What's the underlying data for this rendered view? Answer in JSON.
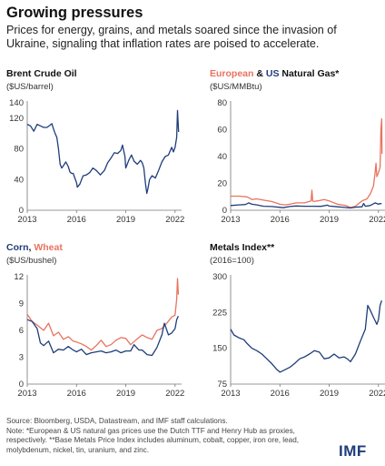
{
  "title": "Growing pressures",
  "subtitle": "Prices for energy, grains, and metals soared since the invasion of Ukraine, signaling that inflation rates are poised to accelerate.",
  "footer": {
    "source": "Source: Bloomberg, USDA, Datastream, and IMF staff calculations.",
    "note": "Note: *European & US natural gas prices use the Dutch TTF and Henry Hub as proxies, respectively. **Base Metals Price Index includes aluminum, cobalt, copper, iron ore, lead, molybdenum, nickel, tin, uranium, and zinc."
  },
  "logo": "IMF",
  "colors": {
    "blue": "#1f3d7a",
    "red": "#e8735f",
    "axis": "#777777"
  },
  "chart_data": [
    {
      "id": "oil",
      "type": "line",
      "title_parts": [
        {
          "text": "Brent Crude Oil",
          "color": "default"
        }
      ],
      "unit": "($US/barrel)",
      "xlim": [
        2013,
        2022.4
      ],
      "ylim": [
        0,
        140
      ],
      "xticks": [
        2013,
        2016,
        2019,
        2022
      ],
      "yticks": [
        0,
        40,
        80,
        120,
        140
      ],
      "series": [
        {
          "color": "blue",
          "x": [
            2013,
            2013.2,
            2013.4,
            2013.6,
            2013.8,
            2014.0,
            2014.2,
            2014.4,
            2014.5,
            2014.6,
            2014.7,
            2014.8,
            2014.9,
            2015.0,
            2015.1,
            2015.2,
            2015.35,
            2015.5,
            2015.6,
            2015.7,
            2015.8,
            2015.9,
            2016.0,
            2016.05,
            2016.2,
            2016.4,
            2016.6,
            2016.8,
            2017.0,
            2017.2,
            2017.45,
            2017.7,
            2017.9,
            2018.1,
            2018.3,
            2018.5,
            2018.7,
            2018.8,
            2018.95,
            2019.0,
            2019.2,
            2019.35,
            2019.5,
            2019.7,
            2019.9,
            2020.0,
            2020.1,
            2020.2,
            2020.28,
            2020.35,
            2020.45,
            2020.6,
            2020.8,
            2021.0,
            2021.2,
            2021.4,
            2021.6,
            2021.8,
            2021.9,
            2022.0,
            2022.1,
            2022.15,
            2022.18,
            2022.22
          ],
          "y": [
            112,
            110,
            103,
            112,
            110,
            108,
            108,
            111,
            113,
            106,
            100,
            95,
            80,
            60,
            55,
            58,
            63,
            57,
            50,
            48,
            48,
            42,
            36,
            30,
            34,
            45,
            46,
            49,
            55,
            52,
            46,
            52,
            62,
            68,
            75,
            74,
            78,
            85,
            70,
            55,
            66,
            72,
            64,
            60,
            65,
            62,
            55,
            35,
            22,
            28,
            40,
            45,
            42,
            52,
            63,
            70,
            72,
            82,
            76,
            82,
            95,
            130,
            118,
            102
          ]
        }
      ]
    },
    {
      "id": "gas",
      "type": "line",
      "title_parts": [
        {
          "text": "European",
          "color": "red"
        },
        {
          "text": " & ",
          "color": "default"
        },
        {
          "text": "US",
          "color": "blue"
        },
        {
          "text": " Natural Gas*",
          "color": "default"
        }
      ],
      "unit": "($US/MMBtu)",
      "xlim": [
        2013,
        2022.4
      ],
      "ylim": [
        0,
        80
      ],
      "xticks": [
        2013,
        2016,
        2019,
        2022
      ],
      "yticks": [
        0,
        20,
        40,
        60,
        80
      ],
      "series": [
        {
          "name": "European",
          "color": "red",
          "x": [
            2013,
            2013.5,
            2014.0,
            2014.3,
            2014.6,
            2015.0,
            2015.5,
            2016.0,
            2016.3,
            2016.6,
            2017.0,
            2017.5,
            2017.9,
            2017.95,
            2018.0,
            2018.05,
            2018.3,
            2018.7,
            2019.0,
            2019.5,
            2020.0,
            2020.3,
            2020.6,
            2021.0,
            2021.3,
            2021.5,
            2021.7,
            2021.8,
            2021.85,
            2021.9,
            2022.0,
            2022.1,
            2022.15,
            2022.2,
            2022.22
          ],
          "y": [
            10.5,
            10.5,
            10,
            8,
            8.5,
            7.5,
            6.5,
            4.5,
            4,
            4.5,
            5.5,
            5.5,
            7,
            15,
            7,
            6.5,
            7,
            8,
            7,
            4.5,
            3.5,
            2,
            3,
            7,
            8.5,
            12,
            18,
            28,
            35,
            25,
            28,
            32,
            60,
            68,
            42
          ]
        },
        {
          "name": "US",
          "color": "blue",
          "x": [
            2013,
            2013.5,
            2013.9,
            2014.1,
            2014.3,
            2014.6,
            2015.0,
            2015.5,
            2016.0,
            2016.2,
            2016.6,
            2017.0,
            2017.5,
            2018.0,
            2018.5,
            2018.9,
            2019.0,
            2019.5,
            2020.0,
            2020.3,
            2020.6,
            2021.0,
            2021.1,
            2021.2,
            2021.5,
            2021.8,
            2022.0,
            2022.1,
            2022.2
          ],
          "y": [
            3.5,
            4,
            4.3,
            5.5,
            4.5,
            4,
            3,
            2.8,
            2.2,
            1.9,
            2.8,
            3.2,
            3,
            3,
            2.9,
            3.8,
            3.1,
            2.6,
            2,
            1.7,
            2.3,
            2.6,
            5,
            3,
            3.5,
            5.5,
            4.5,
            5,
            4.8
          ]
        }
      ]
    },
    {
      "id": "grains",
      "type": "line",
      "title_parts": [
        {
          "text": "Corn",
          "color": "blue"
        },
        {
          "text": ", ",
          "color": "default"
        },
        {
          "text": "Wheat",
          "color": "red"
        }
      ],
      "unit": "($US/bushel)",
      "xlim": [
        2013,
        2022.4
      ],
      "ylim": [
        0,
        12
      ],
      "xticks": [
        2013,
        2016,
        2019,
        2022
      ],
      "yticks": [
        0,
        3,
        6,
        9,
        12
      ],
      "series": [
        {
          "name": "Wheat",
          "color": "red",
          "x": [
            2013,
            2013.3,
            2013.6,
            2014.0,
            2014.3,
            2014.6,
            2014.9,
            2015.2,
            2015.5,
            2015.8,
            2016.0,
            2016.3,
            2016.6,
            2016.9,
            2017.2,
            2017.5,
            2017.8,
            2018.1,
            2018.4,
            2018.7,
            2019.0,
            2019.3,
            2019.6,
            2020.0,
            2020.3,
            2020.6,
            2020.9,
            2021.2,
            2021.5,
            2021.8,
            2022.0,
            2022.1,
            2022.15,
            2022.2
          ],
          "y": [
            7.8,
            7,
            6.6,
            6,
            6.8,
            5.4,
            5.8,
            5,
            5.3,
            4.8,
            4.7,
            4.5,
            4.2,
            3.8,
            4.3,
            4.9,
            4.2,
            4.4,
            4.9,
            5.2,
            5.1,
            4.4,
            4.9,
            5.5,
            5.2,
            5.0,
            6.0,
            6.2,
            6.8,
            7.5,
            7.7,
            9.5,
            11.8,
            10
          ]
        },
        {
          "name": "Corn",
          "color": "blue",
          "x": [
            2013,
            2013.3,
            2013.6,
            2013.8,
            2014.0,
            2014.3,
            2014.6,
            2014.9,
            2015.2,
            2015.5,
            2015.8,
            2016.0,
            2016.3,
            2016.6,
            2016.9,
            2017.2,
            2017.5,
            2017.8,
            2018.1,
            2018.4,
            2018.7,
            2019.0,
            2019.3,
            2019.5,
            2019.8,
            2020.0,
            2020.3,
            2020.6,
            2020.9,
            2021.2,
            2021.35,
            2021.6,
            2021.8,
            2022.0,
            2022.1,
            2022.2
          ],
          "y": [
            7.2,
            7,
            6.2,
            4.6,
            4.3,
            4.8,
            3.5,
            3.9,
            3.8,
            4.2,
            3.8,
            3.6,
            3.9,
            3.3,
            3.5,
            3.6,
            3.7,
            3.5,
            3.6,
            3.8,
            3.5,
            3.7,
            3.7,
            4.4,
            3.8,
            3.8,
            3.3,
            3.2,
            4.1,
            5.5,
            6.8,
            5.5,
            5.7,
            6.2,
            7.2,
            7.6
          ]
        }
      ]
    },
    {
      "id": "metals",
      "type": "line",
      "title_parts": [
        {
          "text": "Metals Index**",
          "color": "default"
        }
      ],
      "unit": "(2016=100)",
      "xlim": [
        2013,
        2022.4
      ],
      "ylim": [
        75,
        300
      ],
      "xticks": [
        2013,
        2016,
        2019,
        2022
      ],
      "yticks": [
        75,
        150,
        225,
        300
      ],
      "series": [
        {
          "color": "blue",
          "x": [
            2013,
            2013.2,
            2013.5,
            2013.8,
            2014.0,
            2014.3,
            2014.6,
            2014.9,
            2015.2,
            2015.5,
            2015.8,
            2016.0,
            2016.3,
            2016.6,
            2016.9,
            2017.2,
            2017.5,
            2017.8,
            2018.1,
            2018.4,
            2018.7,
            2019.0,
            2019.3,
            2019.6,
            2019.9,
            2020.1,
            2020.3,
            2020.6,
            2020.9,
            2021.2,
            2021.35,
            2021.5,
            2021.7,
            2021.9,
            2022.0,
            2022.1,
            2022.2
          ],
          "y": [
            190,
            178,
            172,
            168,
            160,
            150,
            145,
            138,
            128,
            118,
            106,
            100,
            105,
            110,
            118,
            128,
            132,
            138,
            145,
            142,
            128,
            130,
            138,
            130,
            132,
            128,
            122,
            138,
            165,
            190,
            240,
            230,
            215,
            200,
            210,
            240,
            250
          ]
        }
      ]
    }
  ]
}
